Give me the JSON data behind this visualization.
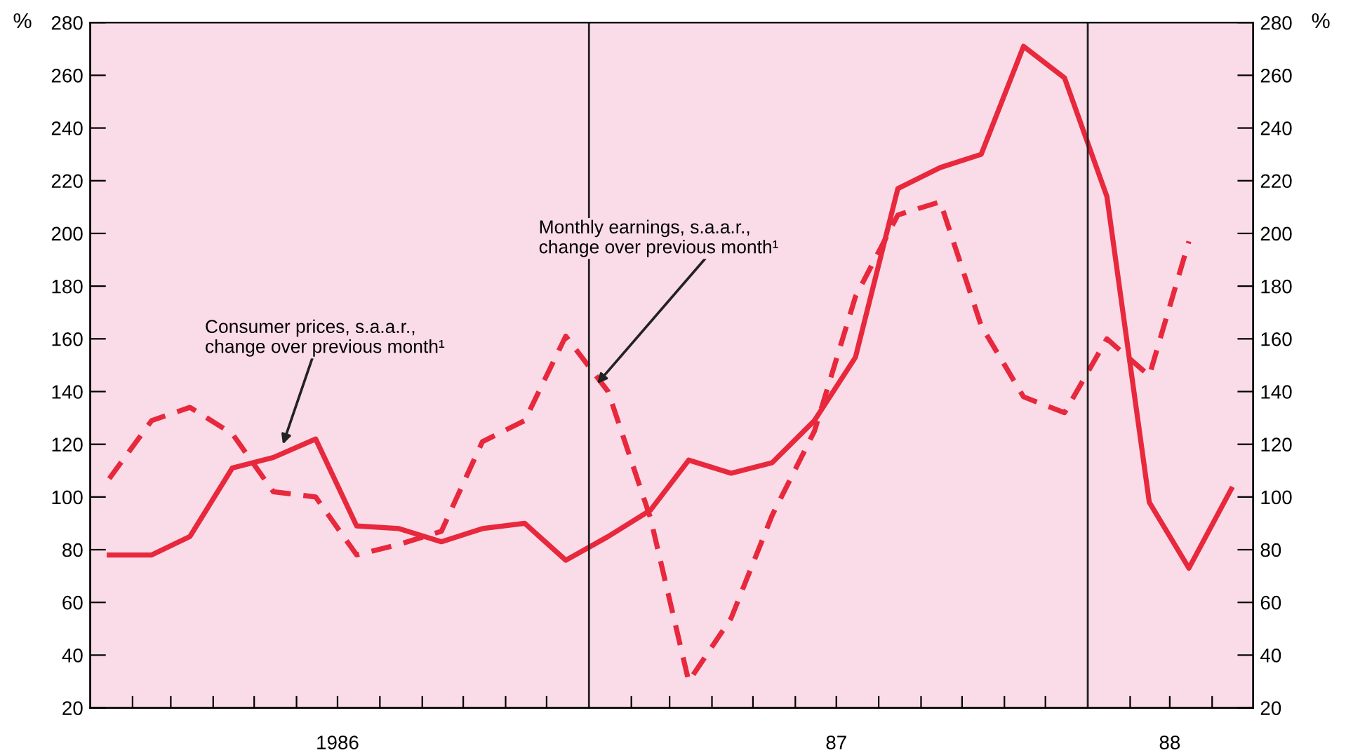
{
  "chart_data": {
    "type": "line",
    "ylabel": "%",
    "y2label": "%",
    "x": [
      "1986-01-15",
      "1986-02-15",
      "1986-03-15",
      "1986-04-15",
      "1986-05-15",
      "1986-06-15",
      "1986-07-15",
      "1986-08-15",
      "1986-09-15",
      "1986-10-15",
      "1986-11-15",
      "1986-12-15",
      "1987-01-15",
      "1987-02-15",
      "1987-03-15",
      "1987-04-15",
      "1987-05-15",
      "1987-06-15",
      "1987-07-15",
      "1987-08-15",
      "1987-09-15",
      "1987-10-15",
      "1987-11-15",
      "1987-12-15",
      "1988-01-15",
      "1988-02-15",
      "1988-03-15",
      "1988-04-15"
    ],
    "series": [
      {
        "color": "#e8283c",
        "line_style": "solid",
        "values": [
          78,
          78,
          85,
          111,
          115,
          122,
          89,
          88,
          83,
          88,
          90,
          76,
          85,
          95,
          114,
          109,
          113,
          129,
          153,
          217,
          225,
          230,
          271,
          259,
          214,
          98,
          73,
          103
        ]
      },
      {
        "color": "#e8283c",
        "line_style": "dashed",
        "values": [
          107,
          129,
          134,
          124,
          102,
          100,
          78,
          82,
          87,
          121,
          129,
          161,
          140,
          92,
          30,
          54,
          93,
          125,
          176,
          207,
          212,
          165,
          138,
          132,
          160,
          146,
          197,
          null
        ]
      }
    ],
    "xlim": [
      "1986-01-01",
      "1988-05-01"
    ],
    "xticks": [
      {
        "value": "1986-02-01",
        "label": null
      },
      {
        "value": "1986-03-01",
        "label": null
      },
      {
        "value": "1986-04-01",
        "label": null
      },
      {
        "value": "1986-05-01",
        "label": null
      },
      {
        "value": "1986-06-01",
        "label": null
      },
      {
        "value": "1986-07-01",
        "label": "1986"
      },
      {
        "value": "1986-08-01",
        "label": null
      },
      {
        "value": "1986-09-01",
        "label": null
      },
      {
        "value": "1986-10-01",
        "label": null
      },
      {
        "value": "1986-11-01",
        "label": null
      },
      {
        "value": "1986-12-01",
        "label": null
      },
      {
        "value": "1987-02-01",
        "label": null
      },
      {
        "value": "1987-03-01",
        "label": null
      },
      {
        "value": "1987-04-01",
        "label": null
      },
      {
        "value": "1987-05-01",
        "label": null
      },
      {
        "value": "1987-06-01",
        "label": null
      },
      {
        "value": "1987-07-01",
        "label": "87"
      },
      {
        "value": "1987-08-01",
        "label": null
      },
      {
        "value": "1987-09-01",
        "label": null
      },
      {
        "value": "1987-10-01",
        "label": null
      },
      {
        "value": "1987-11-01",
        "label": null
      },
      {
        "value": "1987-12-01",
        "label": null
      },
      {
        "value": "1988-02-01",
        "label": null
      },
      {
        "value": "1988-03-01",
        "label": "88"
      },
      {
        "value": "1988-04-01",
        "label": null
      }
    ],
    "ylim": [
      20,
      280
    ],
    "yticks": [
      20,
      40,
      60,
      80,
      100,
      120,
      140,
      160,
      180,
      200,
      220,
      240,
      260,
      280
    ],
    "y2lim": [
      20,
      280
    ],
    "y2ticks": [
      20,
      40,
      60,
      80,
      100,
      120,
      140,
      160,
      180,
      200,
      220,
      240,
      260,
      280
    ],
    "ref_lines": [
      {
        "axis": "x",
        "value": "1987-01-01",
        "color": "#222222"
      },
      {
        "axis": "x",
        "value": "1988-01-01",
        "color": "#222222"
      }
    ],
    "annotations": [
      {
        "text": "Consumer prices, s.a.a.r.,\nchange over previous month¹",
        "x": "1986-05-22",
        "y": 120
      },
      {
        "text": "Monthly earnings, s.a.a.r.,\nchange over previous month¹",
        "x": "1987-01-07",
        "y": 143
      }
    ],
    "grid": false,
    "legend": false,
    "marker": "none"
  }
}
